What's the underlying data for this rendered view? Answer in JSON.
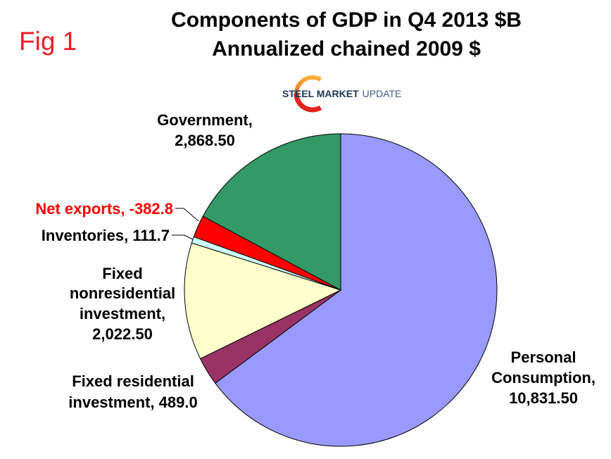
{
  "figure_label": "Fig 1",
  "logo": {
    "bold": "STEEL MARKET",
    "light": "UPDATE"
  },
  "colors": {
    "figure_label": "#EE1C25",
    "title": "#000000",
    "slice_outline": "#000000"
  },
  "chart_data": {
    "type": "pie",
    "title": "Components of GDP in Q4 2013 $B",
    "subtitle": "Annualized chained 2009 $",
    "slices": [
      {
        "label_lines": [
          "Personal",
          "Consumption,",
          "10,831.50"
        ],
        "value": 10831.5,
        "color": "#9999FF",
        "label_color": "#000000"
      },
      {
        "label_lines": [
          "Fixed residential",
          "investment, 489.0"
        ],
        "value": 489.0,
        "color": "#993366",
        "label_color": "#000000"
      },
      {
        "label_lines": [
          "Fixed",
          "nonresidential",
          "investment,",
          "2,022.50"
        ],
        "value": 2022.5,
        "color": "#FFFFCC",
        "label_color": "#000000"
      },
      {
        "label_lines": [
          "Inventories, 111.7"
        ],
        "value": 111.7,
        "color": "#CCFFFF",
        "label_color": "#000000"
      },
      {
        "label_lines": [
          "Net exports, -382.8"
        ],
        "value": -382.8,
        "color": "#FF0000",
        "label_color": "#FF0000"
      },
      {
        "label_lines": [
          "Government,",
          "2,868.50"
        ],
        "value": 2868.5,
        "color": "#339966",
        "label_color": "#000000"
      }
    ]
  }
}
